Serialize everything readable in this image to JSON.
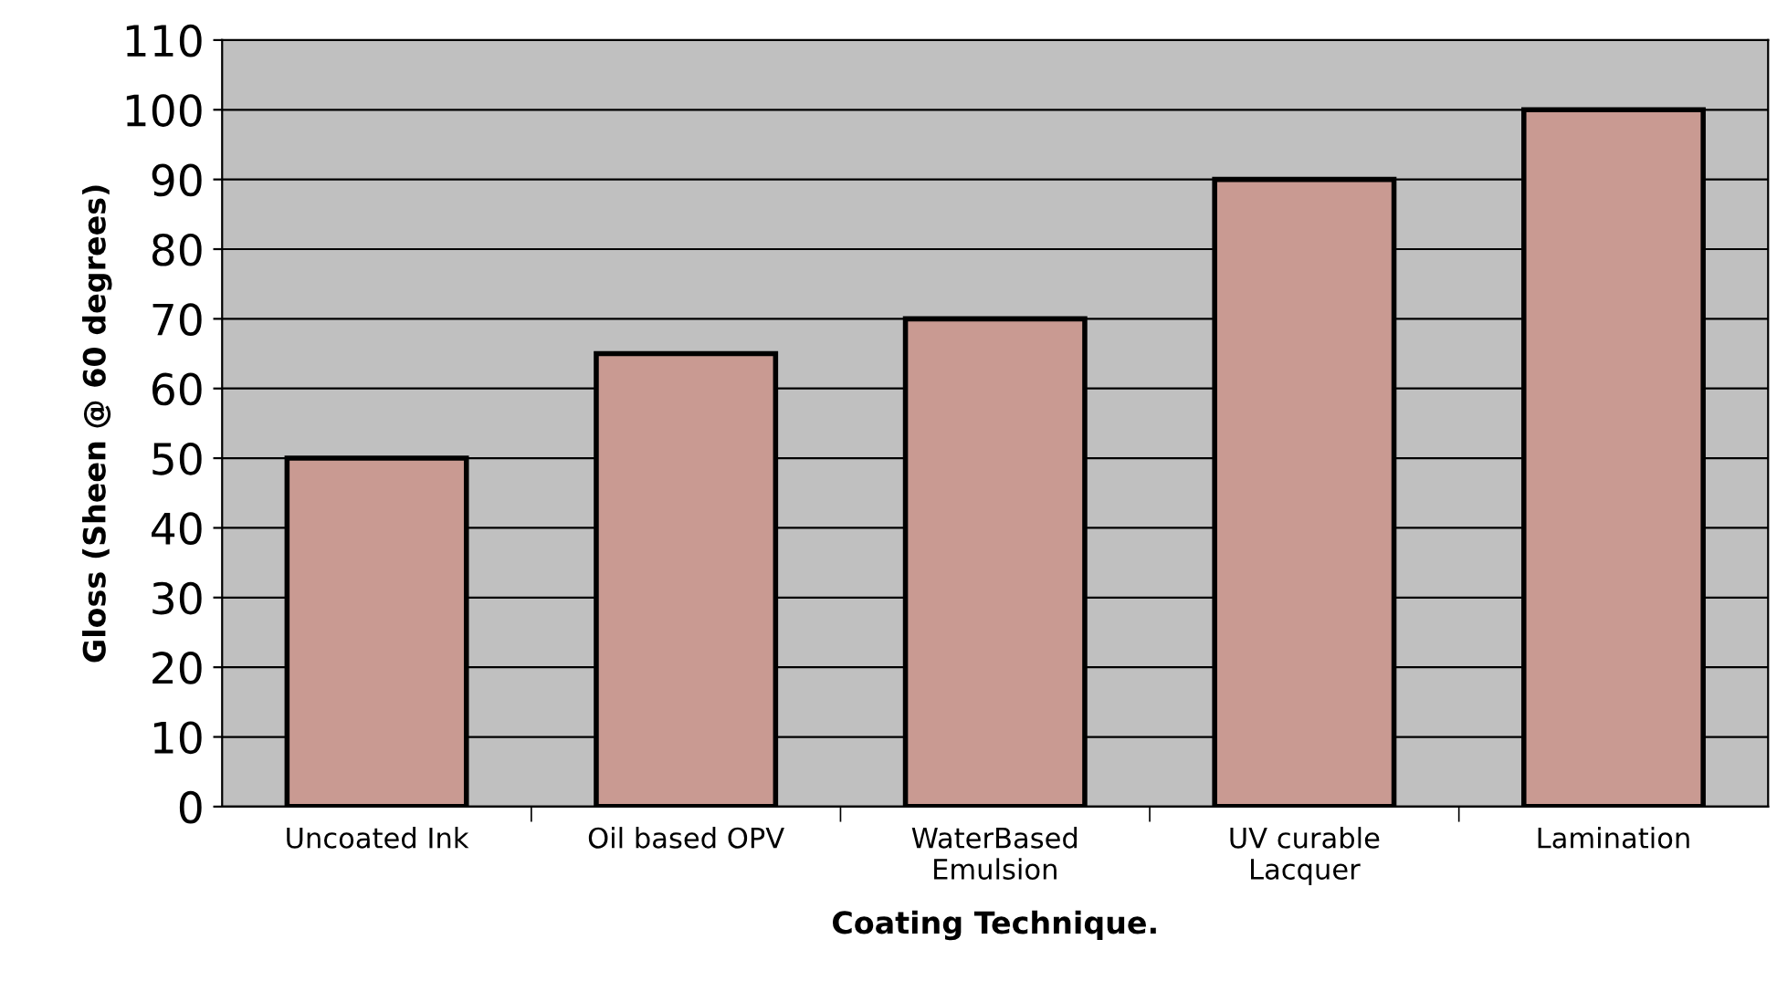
{
  "chart_data": {
    "type": "bar",
    "xlabel": "Coating Technique.",
    "ylabel": "Gloss (Sheen @ 60 degrees)",
    "categories": [
      "Uncoated Ink",
      "Oil based OPV",
      "WaterBased\nEmulsion",
      "UV curable\nLacquer",
      "Lamination"
    ],
    "values": [
      50,
      65,
      70,
      90,
      100
    ],
    "color": "#c99a92",
    "ylim": [
      0,
      110
    ],
    "yticks": [
      0,
      10,
      20,
      30,
      40,
      50,
      60,
      70,
      80,
      90,
      100,
      110
    ],
    "grid": "y",
    "legend": false
  }
}
